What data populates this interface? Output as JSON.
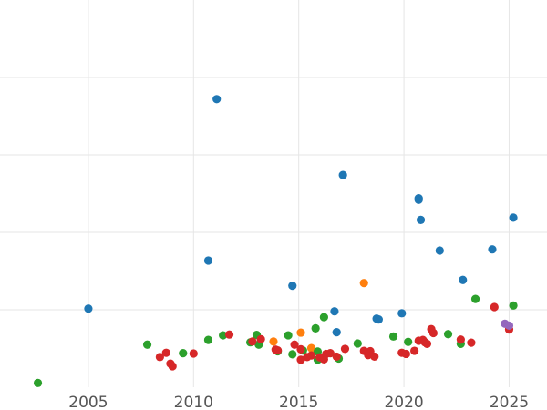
{
  "chart_data": {
    "type": "scatter",
    "title": "",
    "xlabel": "",
    "ylabel": "",
    "grid": true,
    "xlim": [
      2000.8,
      2026.8
    ],
    "ylim": [
      0,
      1
    ],
    "xticks": [
      2005,
      2010,
      2015,
      2020,
      2025
    ],
    "xtick_labels": [
      "2005",
      "2010",
      "2015",
      "2020",
      "2025"
    ],
    "yticks": [
      0.2,
      0.4,
      0.6,
      0.8
    ],
    "ytick_labels": [
      "",
      "",
      "",
      ""
    ],
    "series": [
      {
        "color": "#1f77b4",
        "points": [
          [
            2005.0,
            0.203
          ],
          [
            2010.7,
            0.327
          ],
          [
            2011.1,
            0.744
          ],
          [
            2014.7,
            0.262
          ],
          [
            2016.7,
            0.196
          ],
          [
            2016.8,
            0.142
          ],
          [
            2017.1,
            0.548
          ],
          [
            2018.7,
            0.177
          ],
          [
            2018.8,
            0.175
          ],
          [
            2019.9,
            0.191
          ],
          [
            2020.7,
            0.488
          ],
          [
            2020.7,
            0.484
          ],
          [
            2020.8,
            0.432
          ],
          [
            2021.7,
            0.353
          ],
          [
            2022.8,
            0.277
          ],
          [
            2024.2,
            0.356
          ],
          [
            2025.2,
            0.438
          ]
        ]
      },
      {
        "color": "#ff7f0e",
        "points": [
          [
            2013.8,
            0.118
          ],
          [
            2015.1,
            0.141
          ],
          [
            2015.6,
            0.101
          ],
          [
            2018.1,
            0.269
          ]
        ]
      },
      {
        "color": "#2ca02c",
        "points": [
          [
            2002.6,
            0.011
          ],
          [
            2007.8,
            0.11
          ],
          [
            2009.5,
            0.088
          ],
          [
            2010.7,
            0.122
          ],
          [
            2011.4,
            0.134
          ],
          [
            2012.7,
            0.116
          ],
          [
            2013.0,
            0.135
          ],
          [
            2013.1,
            0.11
          ],
          [
            2014.0,
            0.093
          ],
          [
            2014.5,
            0.134
          ],
          [
            2014.7,
            0.085
          ],
          [
            2015.2,
            0.095
          ],
          [
            2015.8,
            0.152
          ],
          [
            2015.9,
            0.071
          ],
          [
            2015.9,
            0.092
          ],
          [
            2016.2,
            0.181
          ],
          [
            2016.9,
            0.074
          ],
          [
            2017.8,
            0.113
          ],
          [
            2019.5,
            0.131
          ],
          [
            2020.2,
            0.117
          ],
          [
            2022.1,
            0.137
          ],
          [
            2022.7,
            0.112
          ],
          [
            2023.4,
            0.228
          ],
          [
            2025.2,
            0.211
          ]
        ]
      },
      {
        "color": "#d62728",
        "points": [
          [
            2008.4,
            0.078
          ],
          [
            2008.7,
            0.089
          ],
          [
            2008.9,
            0.061
          ],
          [
            2009.0,
            0.054
          ],
          [
            2010.0,
            0.087
          ],
          [
            2011.7,
            0.136
          ],
          [
            2012.8,
            0.118
          ],
          [
            2013.2,
            0.124
          ],
          [
            2013.9,
            0.097
          ],
          [
            2014.0,
            0.095
          ],
          [
            2014.8,
            0.11
          ],
          [
            2015.1,
            0.098
          ],
          [
            2015.1,
            0.071
          ],
          [
            2015.4,
            0.078
          ],
          [
            2015.6,
            0.082
          ],
          [
            2016.0,
            0.077
          ],
          [
            2016.2,
            0.072
          ],
          [
            2016.3,
            0.086
          ],
          [
            2016.5,
            0.088
          ],
          [
            2016.8,
            0.079
          ],
          [
            2017.2,
            0.099
          ],
          [
            2018.1,
            0.094
          ],
          [
            2018.3,
            0.083
          ],
          [
            2018.4,
            0.093
          ],
          [
            2018.6,
            0.079
          ],
          [
            2019.9,
            0.089
          ],
          [
            2020.1,
            0.086
          ],
          [
            2020.5,
            0.094
          ],
          [
            2020.7,
            0.12
          ],
          [
            2020.9,
            0.122
          ],
          [
            2021.0,
            0.116
          ],
          [
            2021.1,
            0.112
          ],
          [
            2021.3,
            0.15
          ],
          [
            2021.4,
            0.14
          ],
          [
            2022.7,
            0.123
          ],
          [
            2023.2,
            0.115
          ],
          [
            2024.3,
            0.207
          ],
          [
            2025.0,
            0.149
          ]
        ]
      },
      {
        "color": "#9467bd",
        "points": [
          [
            2024.8,
            0.164
          ],
          [
            2025.0,
            0.159
          ]
        ]
      }
    ]
  }
}
